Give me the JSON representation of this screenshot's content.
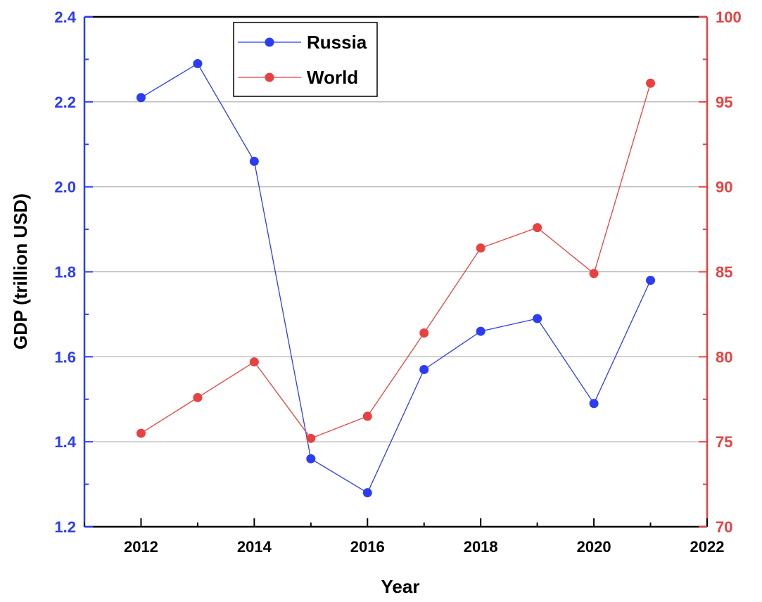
{
  "chart_data": {
    "type": "line",
    "xlabel": "Year",
    "ylabel": "GDP (trillion USD)",
    "x": [
      2012,
      2013,
      2014,
      2015,
      2016,
      2017,
      2018,
      2019,
      2020,
      2021
    ],
    "xlim": [
      2011,
      2022
    ],
    "x_ticks": [
      2012,
      2014,
      2016,
      2018,
      2020,
      2022
    ],
    "ylim_left": [
      1.2,
      2.4
    ],
    "y_ticks_left": [
      "1.2",
      "1.4",
      "1.6",
      "1.8",
      "2.0",
      "2.2",
      "2.4"
    ],
    "ylim_right": [
      70,
      100
    ],
    "y_ticks_right": [
      70,
      75,
      80,
      85,
      90,
      95,
      100
    ],
    "grid": "horizontal",
    "legend_position": "top-left",
    "series": [
      {
        "name": "Russia",
        "axis": "left",
        "color": "#2b3cf5",
        "values": [
          2.21,
          2.29,
          2.06,
          1.36,
          1.28,
          1.57,
          1.66,
          1.69,
          1.49,
          1.78
        ]
      },
      {
        "name": "World",
        "axis": "right",
        "color": "#e84141",
        "values": [
          75.5,
          77.6,
          79.7,
          75.2,
          76.5,
          81.4,
          86.4,
          87.6,
          84.9,
          96.1
        ]
      }
    ]
  }
}
